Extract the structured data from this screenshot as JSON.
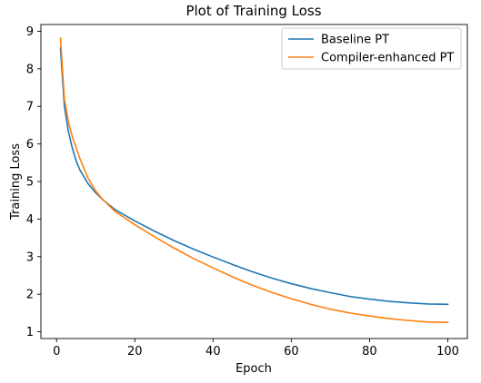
{
  "chart_data": {
    "type": "line",
    "title": "Plot of Training Loss",
    "xlabel": "Epoch",
    "ylabel": "Training Loss",
    "xlim": [
      -4,
      105
    ],
    "ylim": [
      0.82,
      9.18
    ],
    "xticks": [
      0,
      20,
      40,
      60,
      80,
      100
    ],
    "yticks": [
      1,
      2,
      3,
      4,
      5,
      6,
      7,
      8,
      9
    ],
    "grid": false,
    "legend_position": "top-right",
    "x": [
      1,
      2,
      3,
      4,
      5,
      6,
      8,
      10,
      12,
      15,
      20,
      25,
      30,
      35,
      40,
      45,
      50,
      55,
      60,
      65,
      70,
      75,
      80,
      85,
      90,
      95,
      100
    ],
    "series": [
      {
        "name": "Baseline PT",
        "color": "#1f77b4",
        "values": [
          8.55,
          7.0,
          6.35,
          5.9,
          5.55,
          5.3,
          4.95,
          4.7,
          4.5,
          4.25,
          3.95,
          3.68,
          3.43,
          3.2,
          2.99,
          2.79,
          2.6,
          2.43,
          2.28,
          2.15,
          2.04,
          1.94,
          1.87,
          1.81,
          1.77,
          1.74,
          1.73
        ]
      },
      {
        "name": "Compiler-enhanced PT",
        "color": "#ff7f0e",
        "values": [
          8.82,
          7.2,
          6.6,
          6.2,
          5.9,
          5.6,
          5.1,
          4.75,
          4.5,
          4.2,
          3.85,
          3.53,
          3.23,
          2.95,
          2.7,
          2.46,
          2.24,
          2.05,
          1.88,
          1.73,
          1.6,
          1.5,
          1.42,
          1.35,
          1.3,
          1.26,
          1.25
        ]
      }
    ]
  }
}
